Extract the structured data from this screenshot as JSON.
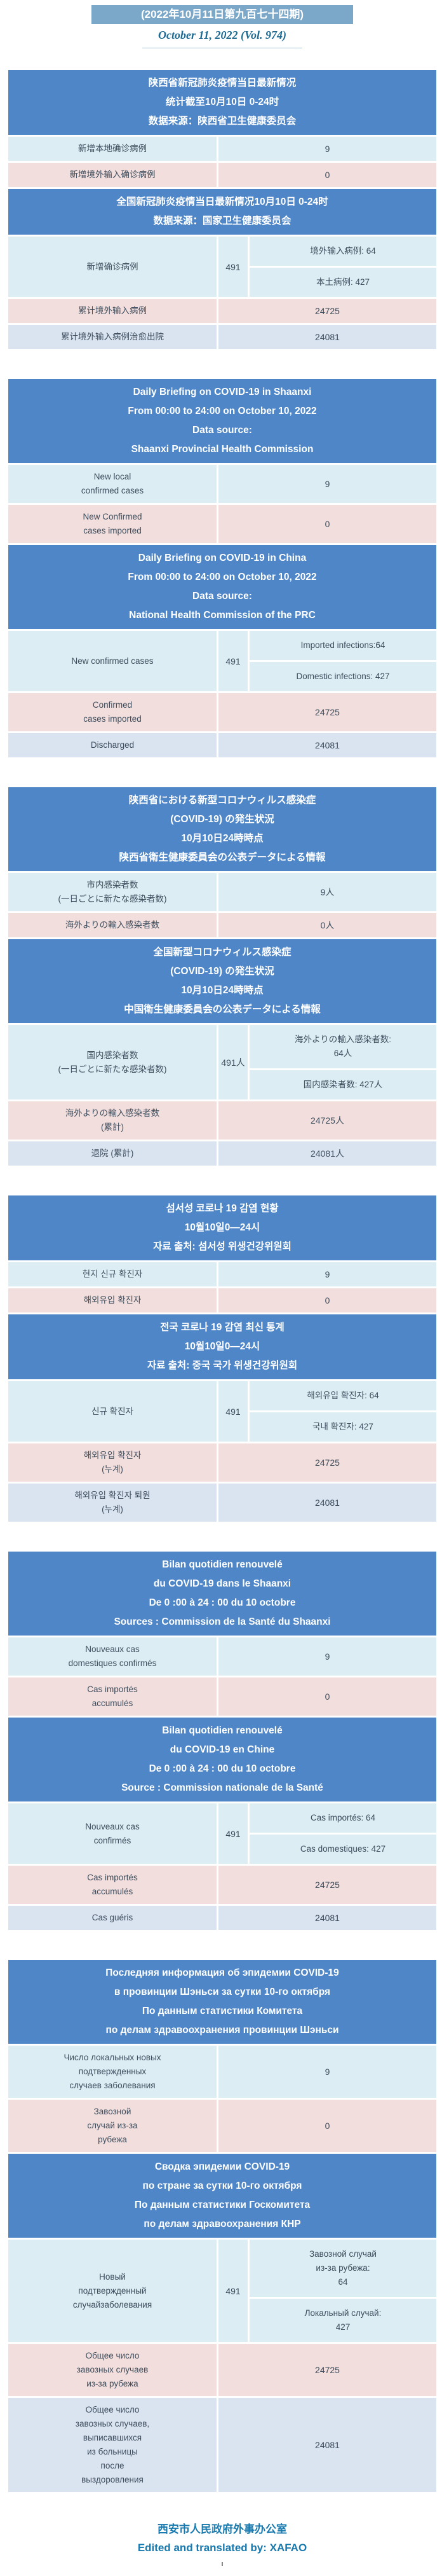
{
  "page": {
    "issue_title": "(2022年10月11日第九百七十四期)",
    "issue_subtitle": "October 11, 2022 (Vol. 974)",
    "footer_org": "西安市人民政府外事办公室",
    "footer_credit": "Edited and translated by: XAFAO"
  },
  "colors": {
    "issue_bar_bg": "#7ba7c9",
    "header_bg": "#4e86c8",
    "row_cyan": "#dcedf4",
    "row_pink": "#f2dedc",
    "row_lavender": "#dae3f0",
    "text": "#3d4d5d",
    "subtitle": "#1d6a93",
    "footer": "#1879ae"
  },
  "sections": [
    {
      "id": "zh-shaanxi",
      "gap_before": false,
      "header_lines": [
        "陕西省新冠肺炎疫情当日最新情况",
        "统计截至10月10日 0-24时",
        "数据来源：陕西省卫生健康委员会"
      ],
      "rows": [
        {
          "type": "simple",
          "tone": "cyan",
          "label_lines": [
            "新增本地确诊病例"
          ],
          "value": "9"
        },
        {
          "type": "simple",
          "tone": "pink",
          "label_lines": [
            "新增境外输入确诊病例"
          ],
          "value": "0"
        }
      ]
    },
    {
      "id": "zh-china",
      "gap_before": false,
      "header_lines": [
        "全国新冠肺炎疫情当日最新情况10月10日 0-24时",
        "数据来源：国家卫生健康委员会"
      ],
      "rows": [
        {
          "type": "split",
          "tone": "cyan",
          "label_lines": [
            "新增确诊病例"
          ],
          "value": "491",
          "subs": [
            [
              "境外输入病例: 64"
            ],
            [
              "本土病例: 427"
            ]
          ]
        },
        {
          "type": "simple",
          "tone": "pink",
          "label_lines": [
            "累计境外输入病例"
          ],
          "value": "24725"
        },
        {
          "type": "simple",
          "tone": "lavender",
          "label_lines": [
            "累计境外输入病例治愈出院"
          ],
          "value": "24081"
        }
      ]
    },
    {
      "id": "en-shaanxi",
      "gap_before": true,
      "header_lines": [
        "Daily Briefing on COVID-19 in Shaanxi",
        "From 00:00 to 24:00 on October 10, 2022",
        "Data source:",
        "Shaanxi Provincial Health Commission"
      ],
      "rows": [
        {
          "type": "simple",
          "tone": "cyan",
          "label_lines": [
            "New local",
            "confirmed cases"
          ],
          "value": "9"
        },
        {
          "type": "simple",
          "tone": "pink",
          "label_lines": [
            "New Confirmed",
            "cases imported"
          ],
          "value": "0"
        }
      ]
    },
    {
      "id": "en-china",
      "gap_before": false,
      "header_lines": [
        "Daily Briefing on COVID-19 in China",
        "From 00:00 to 24:00 on October 10, 2022",
        "Data source:",
        "National Health Commission of the PRC"
      ],
      "rows": [
        {
          "type": "split",
          "tone": "cyan",
          "label_lines": [
            "New confirmed cases"
          ],
          "value": "491",
          "subs": [
            [
              "Imported infections:64"
            ],
            [
              "Domestic infections: 427"
            ]
          ]
        },
        {
          "type": "simple",
          "tone": "pink",
          "label_lines": [
            "Confirmed",
            "cases imported"
          ],
          "value": "24725"
        },
        {
          "type": "simple",
          "tone": "lavender",
          "label_lines": [
            "Discharged"
          ],
          "value": "24081"
        }
      ]
    },
    {
      "id": "ja-shaanxi",
      "gap_before": true,
      "header_lines": [
        "陕西省における新型コロナウィルス感染症",
        "(COVID-19) の発生状況",
        "10月10日24時時点",
        "陕西省衛生健康委員会の公表データによる情報"
      ],
      "rows": [
        {
          "type": "simple",
          "tone": "cyan",
          "label_lines": [
            "市内感染者数",
            "(一日ごとに新たな感染者数)"
          ],
          "value": "9人"
        },
        {
          "type": "simple",
          "tone": "pink",
          "label_lines": [
            "海外よりの輸入感染者数"
          ],
          "value": "0人"
        }
      ]
    },
    {
      "id": "ja-china",
      "gap_before": false,
      "header_lines": [
        "全国新型コロナウィルス感染症",
        "(COVID-19) の発生状況",
        "10月10日24時時点",
        "中国衛生健康委員会の公表データによる情報"
      ],
      "rows": [
        {
          "type": "split",
          "tone": "cyan",
          "label_lines": [
            "国内感染者数",
            "(一日ごとに新たな感染者数)"
          ],
          "value": "491人",
          "subs": [
            [
              "海外よりの輸入感染者数:",
              "64人"
            ],
            [
              "国内感染者数: 427人"
            ]
          ]
        },
        {
          "type": "simple",
          "tone": "pink",
          "label_lines": [
            "海外よりの輸入感染者数",
            "(累計)"
          ],
          "value": "24725人"
        },
        {
          "type": "simple",
          "tone": "lavender",
          "label_lines": [
            "退院 (累計)"
          ],
          "value": "24081人"
        }
      ]
    },
    {
      "id": "ko-shaanxi",
      "gap_before": true,
      "header_lines": [
        "섬서성 코로나 19 감염 현황",
        "10월10일0—24시",
        "자료 출처: 섬서성 위생건강위원회"
      ],
      "rows": [
        {
          "type": "simple",
          "tone": "cyan",
          "label_lines": [
            "현지 신규 확진자"
          ],
          "value": "9"
        },
        {
          "type": "simple",
          "tone": "pink",
          "label_lines": [
            "해외유입 확진자"
          ],
          "value": "0"
        }
      ]
    },
    {
      "id": "ko-china",
      "gap_before": false,
      "header_lines": [
        "전국 코로나 19 감염 최신 통계",
        "10월10일0—24시",
        "자료 출처: 중국 국가 위생건강위원회"
      ],
      "rows": [
        {
          "type": "split",
          "tone": "cyan",
          "label_lines": [
            "신규 확진자"
          ],
          "value": "491",
          "subs": [
            [
              "해외유입 확진자: 64"
            ],
            [
              "국내 확진자: 427"
            ]
          ]
        },
        {
          "type": "simple",
          "tone": "pink",
          "label_lines": [
            "해외유입 확진자",
            "(누계)"
          ],
          "value": "24725"
        },
        {
          "type": "simple",
          "tone": "lavender",
          "label_lines": [
            "해외유입 확진자 퇴원",
            "(누계)"
          ],
          "value": "24081"
        }
      ]
    },
    {
      "id": "fr-shaanxi",
      "gap_before": true,
      "header_lines": [
        "Bilan quotidien renouvelé",
        "du COVID-19 dans le Shaanxi",
        "De 0 :00 à 24 : 00 du 10 octobre",
        "Sources : Commission de la Santé du Shaanxi"
      ],
      "rows": [
        {
          "type": "simple",
          "tone": "cyan",
          "label_lines": [
            "Nouveaux cas",
            "domestiques confirmés"
          ],
          "value": "9"
        },
        {
          "type": "simple",
          "tone": "pink",
          "label_lines": [
            "Cas importés",
            "accumulés"
          ],
          "value": "0"
        }
      ]
    },
    {
      "id": "fr-china",
      "gap_before": false,
      "header_lines": [
        "Bilan quotidien renouvelé",
        "du COVID-19 en Chine",
        "De 0 :00 à 24 : 00 du 10 octobre",
        "Source : Commission nationale de la Santé"
      ],
      "rows": [
        {
          "type": "split",
          "tone": "cyan",
          "label_lines": [
            "Nouveaux cas",
            "confirmés"
          ],
          "value": "491",
          "subs": [
            [
              "Cas importés: 64"
            ],
            [
              "Cas domestiques: 427"
            ]
          ]
        },
        {
          "type": "simple",
          "tone": "pink",
          "label_lines": [
            "Cas importés",
            "accumulés"
          ],
          "value": "24725"
        },
        {
          "type": "simple",
          "tone": "lavender",
          "label_lines": [
            "Cas guéris"
          ],
          "value": "24081"
        }
      ]
    },
    {
      "id": "ru-shaanxi",
      "gap_before": true,
      "header_lines": [
        "Последняя информация об эпидемии COVID-19",
        "в провинции Шэньси за сутки 10-го октября",
        "По данным статистики Комитета",
        "по делам здравоохранения провинции Шэньси"
      ],
      "rows": [
        {
          "type": "simple",
          "tone": "cyan",
          "label_lines": [
            "Число локальных новых",
            "подтвержденных",
            "случаев заболевания"
          ],
          "value": "9"
        },
        {
          "type": "simple",
          "tone": "pink",
          "label_lines": [
            "Завозной",
            "случай из-за",
            "рубежа"
          ],
          "value": "0"
        }
      ]
    },
    {
      "id": "ru-china",
      "gap_before": false,
      "header_lines": [
        "Сводка эпидемии COVID-19",
        "по стране за сутки 10-го октября",
        "По данным статистики Госкомитета",
        "по делам здравоохранения КНР"
      ],
      "rows": [
        {
          "type": "split",
          "tone": "cyan",
          "label_lines": [
            "Новый",
            "подтвержденный",
            "случайзаболевания"
          ],
          "value": "491",
          "subs": [
            [
              "Завозной случай",
              "из-за рубежа:",
              "64"
            ],
            [
              "Локальный случай:",
              "427"
            ]
          ]
        },
        {
          "type": "simple",
          "tone": "pink",
          "label_lines": [
            "Общее число",
            "завозных случаев",
            "из-за рубежа"
          ],
          "value": "24725"
        },
        {
          "type": "simple",
          "tone": "lavender",
          "label_lines": [
            "Общее число",
            "завозных случаев,",
            "выписавшихся",
            "из больницы",
            "после",
            "выздоровления"
          ],
          "value": "24081"
        }
      ]
    }
  ]
}
